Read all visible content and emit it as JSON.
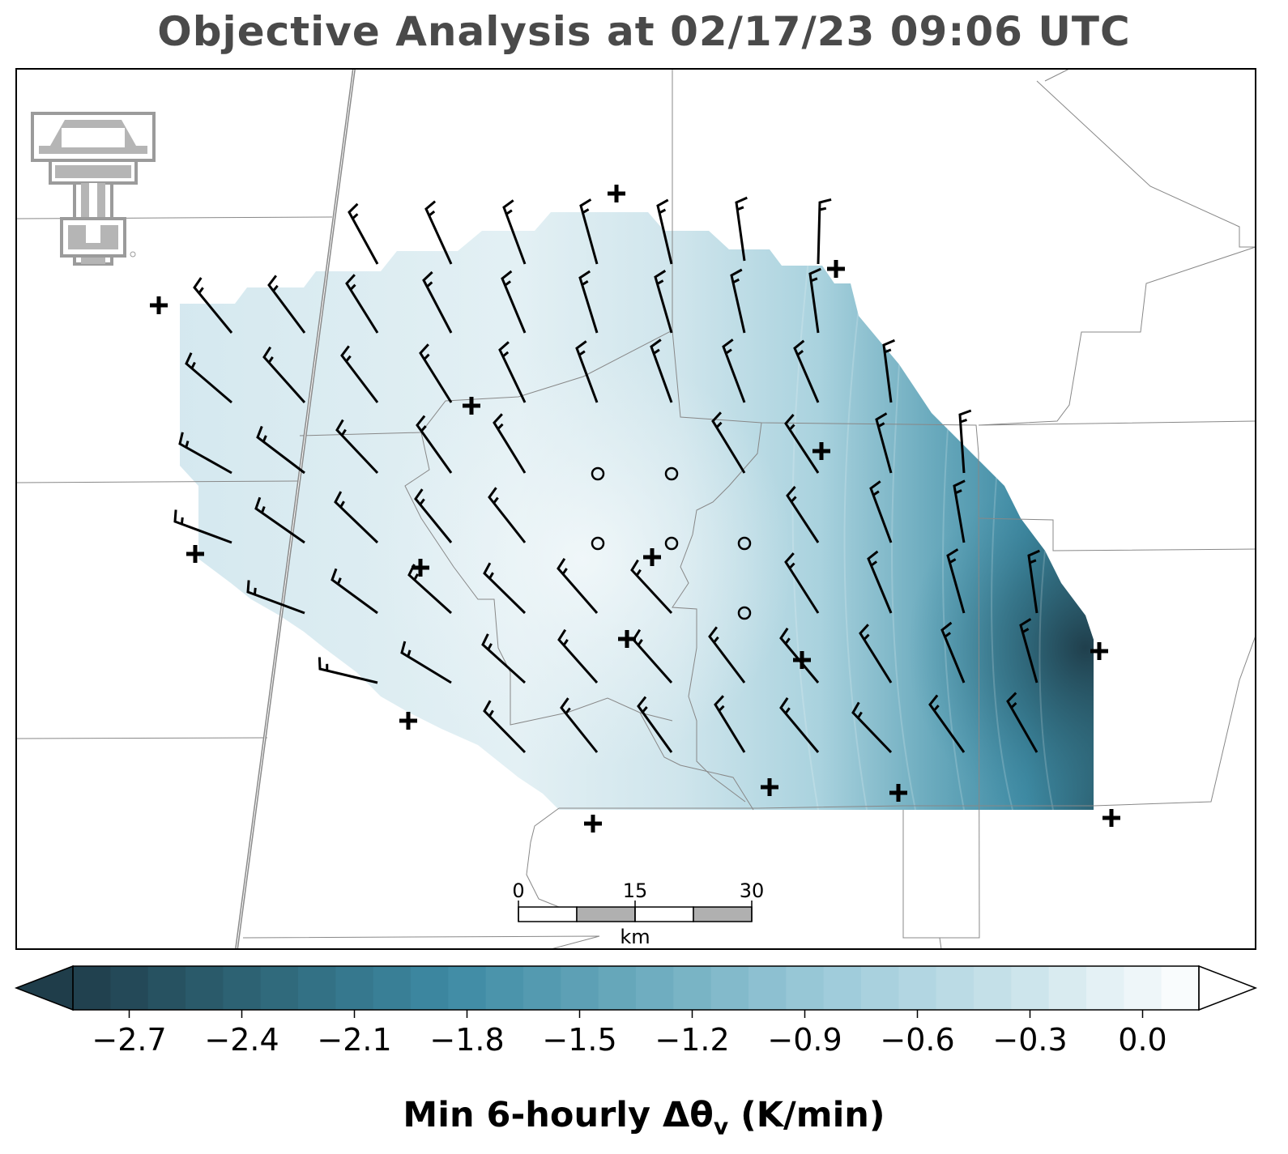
{
  "title": "Objective Analysis at 02/17/23 09:06 UTC",
  "colorbar": {
    "label_prefix": "Min 6-hourly Δθ",
    "label_sub": "v",
    "label_suffix": " (K/min)",
    "min": -2.85,
    "max": 0.15,
    "step": 0.1,
    "tick_values": [
      -2.7,
      -2.4,
      -2.1,
      -1.8,
      -1.5,
      -1.2,
      -0.9,
      -0.6,
      -0.3,
      0.0
    ],
    "tick_labels": [
      "−2.7",
      "−2.4",
      "−2.1",
      "−1.8",
      "−1.5",
      "−1.2",
      "−0.9",
      "−0.6",
      "−0.3",
      "0.0"
    ],
    "colormap": [
      "#1f3d4a",
      "#2e6678",
      "#3e8aa3",
      "#6aaabd",
      "#9ccad9",
      "#c8e2ea",
      "#ffffff"
    ],
    "extend": "both"
  },
  "scale_bar": {
    "unit": "km",
    "tick_labels": [
      "0",
      "15",
      "30"
    ]
  },
  "markers": {
    "plus_count": 16,
    "circle_count": 6
  },
  "colors": {
    "border": "#888888",
    "highway": "#8a8a8a",
    "barb": "#000000",
    "title": "#4a4a4a"
  }
}
